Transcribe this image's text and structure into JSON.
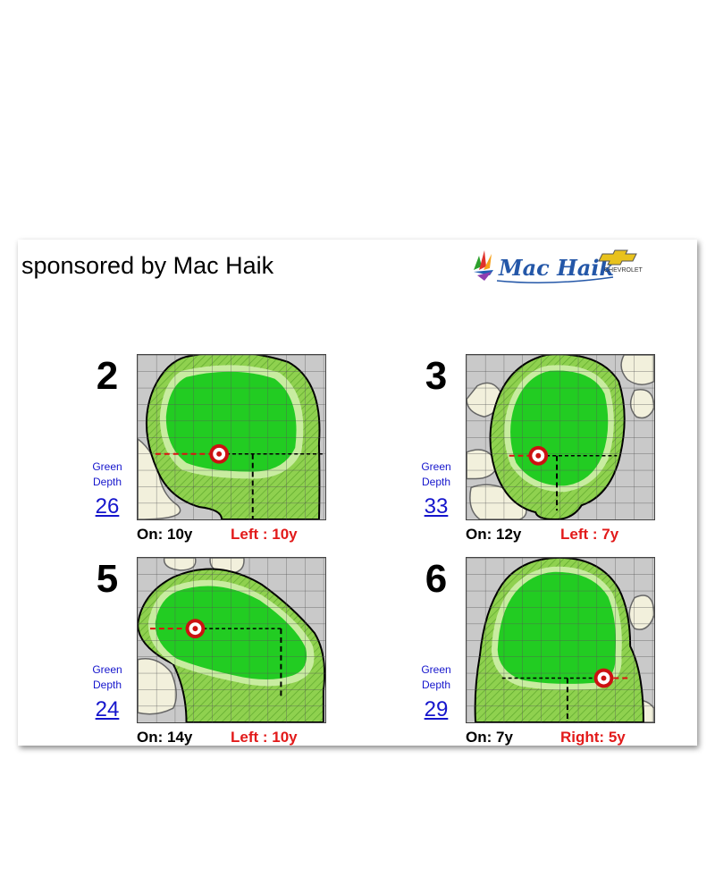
{
  "sponsor": {
    "text": "sponsored by Mac Haik"
  },
  "logo": {
    "brand_text": "Mac Haik",
    "sub_text": "CHEVROLET",
    "icon": "chevrolet-bowtie-icon"
  },
  "depth_caption_line1": "Green",
  "depth_caption_line2": "Depth",
  "colors": {
    "green": "#22cc22",
    "fringe": "#8fd14f",
    "rough": "#c9c9c9",
    "sand": "#f2f0dc",
    "pin": "#cc1111",
    "depth_link": "#1515cc",
    "side_label": "#e21a1a"
  },
  "holes": [
    {
      "number": "2",
      "depth": "26",
      "on": "On: 10y",
      "side": "Left : 10y"
    },
    {
      "number": "3",
      "depth": "33",
      "on": "On: 12y",
      "side": "Left : 7y"
    },
    {
      "number": "5",
      "depth": "24",
      "on": "On: 14y",
      "side": "Left : 10y"
    },
    {
      "number": "6",
      "depth": "29",
      "on": "On: 7y",
      "side": "Right: 5y"
    }
  ]
}
